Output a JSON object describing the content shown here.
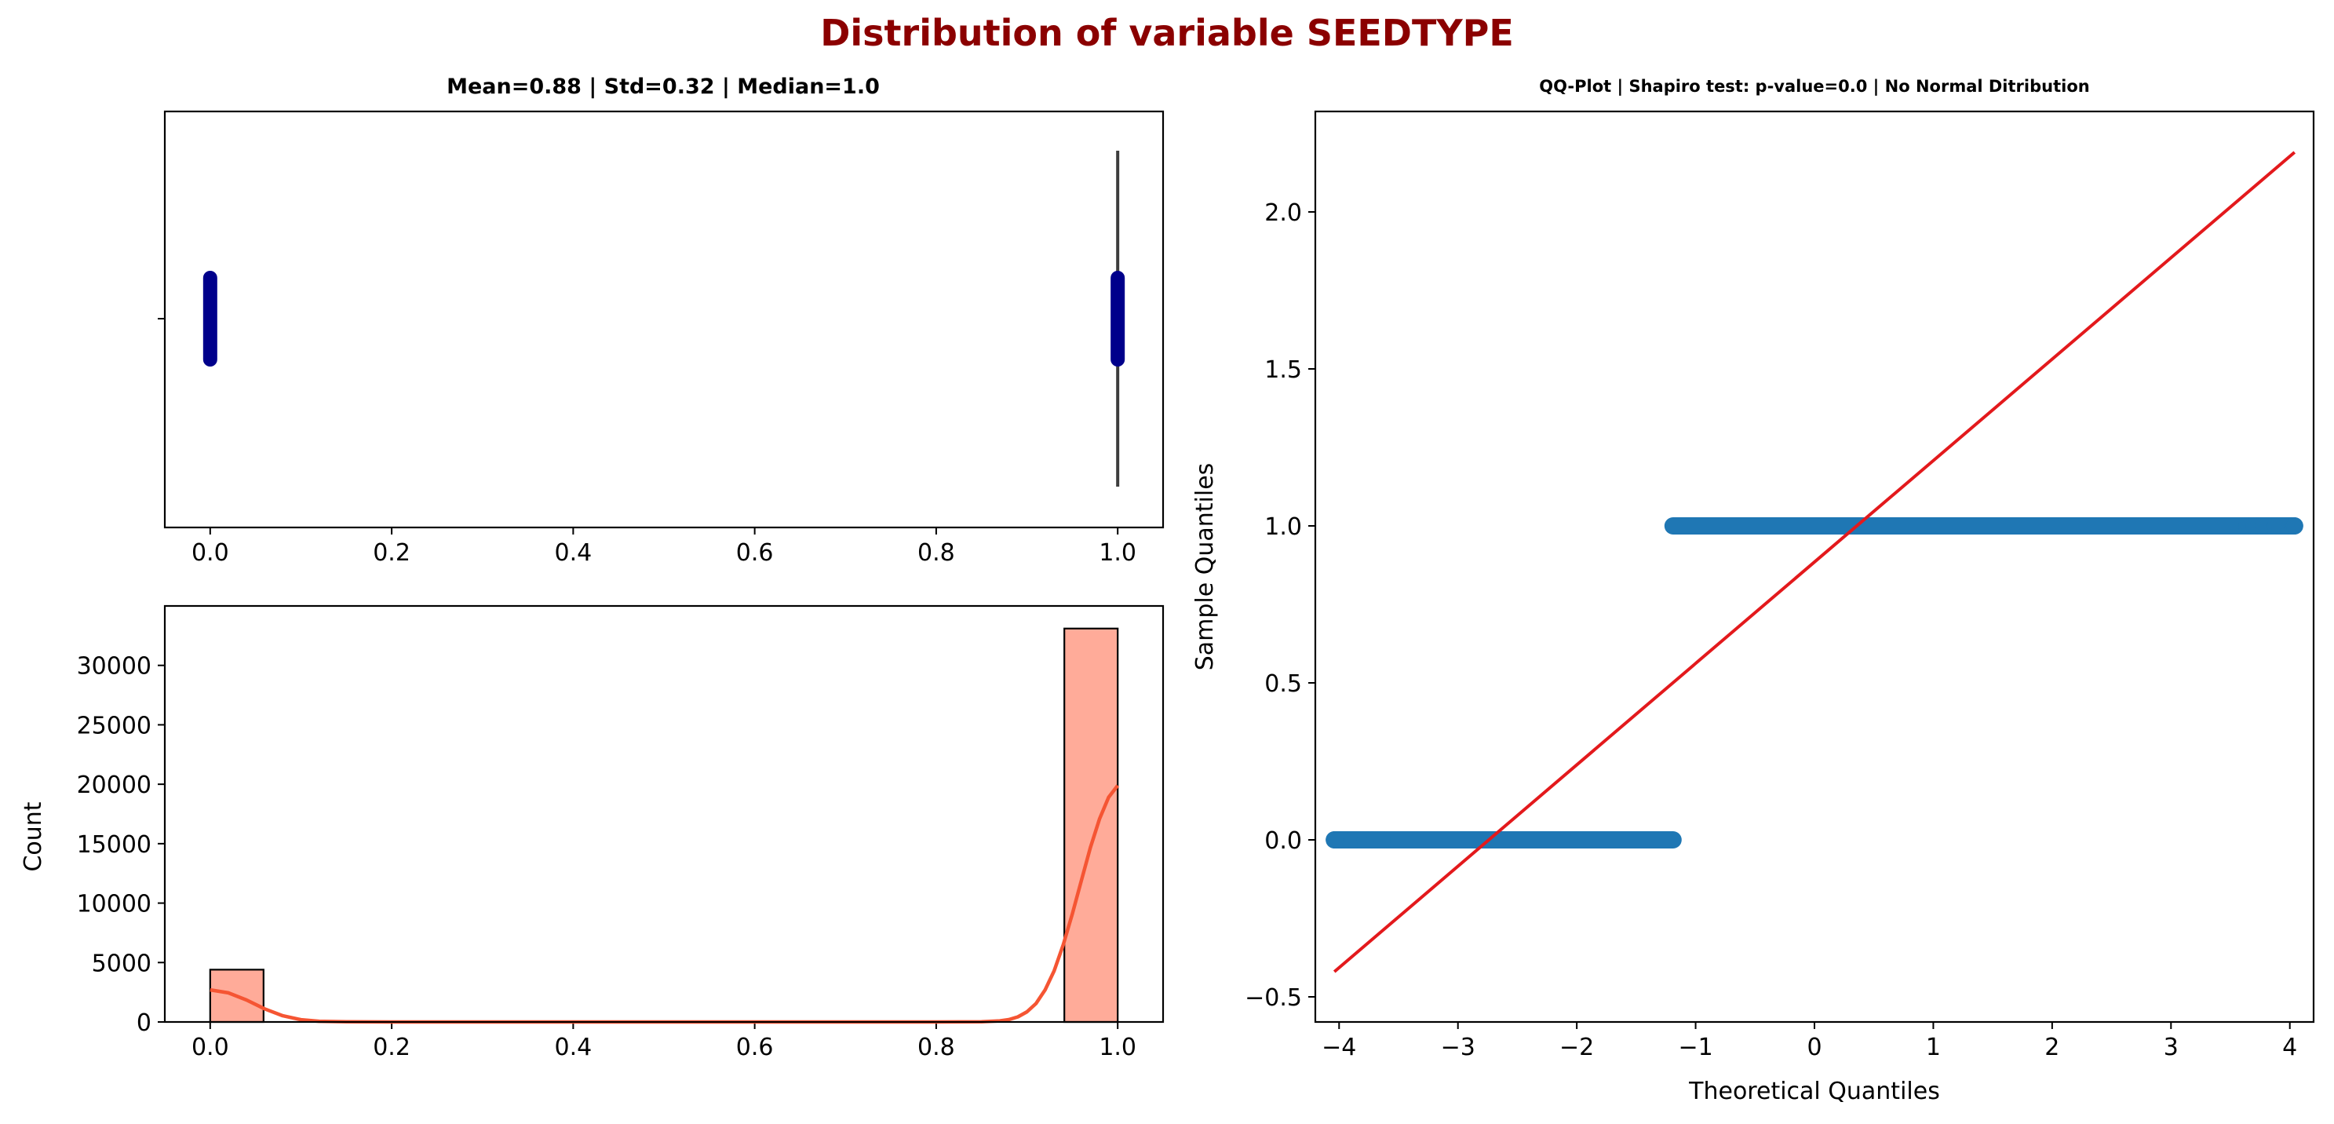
{
  "suptitle": "Distribution of variable SEEDTYPE",
  "colors": {
    "title": "#8b0000",
    "box_points": "#00008b",
    "hist_fill": "#ffab99",
    "kde": "#f55533",
    "qq_points": "#1f77b4",
    "qq_line": "#e3191c",
    "axis": "#000000"
  },
  "chart_data": [
    {
      "id": "boxplot",
      "type": "box-strip",
      "title": "Mean=0.88 | Std=0.32 | Median=1.0",
      "xlim": [
        -0.05,
        1.05
      ],
      "xticks": [
        "0.0",
        "0.2",
        "0.4",
        "0.6",
        "0.8",
        "1.0"
      ],
      "xtick_values": [
        0.0,
        0.2,
        0.4,
        0.6,
        0.8,
        1.0
      ],
      "ytick_labels": [
        ""
      ],
      "strip_values": [
        0.0,
        1.0
      ],
      "box": {
        "q1": 1.0,
        "median": 1.0,
        "q3": 1.0,
        "whisker_low": 1.0,
        "whisker_high": 1.0
      }
    },
    {
      "id": "histogram",
      "type": "bar",
      "title": "",
      "xlabel": "",
      "ylabel": "Count",
      "xlim": [
        -0.05,
        1.05
      ],
      "ylim": [
        0,
        35000
      ],
      "xticks": [
        "0.0",
        "0.2",
        "0.4",
        "0.6",
        "0.8",
        "1.0"
      ],
      "xtick_values": [
        0.0,
        0.2,
        0.4,
        0.6,
        0.8,
        1.0
      ],
      "yticks": [
        "0",
        "5000",
        "10000",
        "15000",
        "20000",
        "25000",
        "30000"
      ],
      "ytick_values": [
        0,
        5000,
        10000,
        15000,
        20000,
        25000,
        30000
      ],
      "bins": [
        {
          "x0": 0.0,
          "x1": 0.0588,
          "count": 4400
        },
        {
          "x0": 0.9412,
          "x1": 1.0,
          "count": 33100
        }
      ],
      "kde": {
        "x": [
          0.0,
          0.02,
          0.04,
          0.06,
          0.08,
          0.1,
          0.12,
          0.15,
          0.2,
          0.5,
          0.8,
          0.85,
          0.87,
          0.88,
          0.89,
          0.9,
          0.91,
          0.92,
          0.93,
          0.94,
          0.95,
          0.96,
          0.97,
          0.98,
          0.99,
          1.0
        ],
        "y": [
          2700,
          2450,
          1850,
          1100,
          520,
          190,
          60,
          10,
          0,
          0,
          0,
          20,
          90,
          200,
          430,
          850,
          1550,
          2700,
          4300,
          6500,
          9100,
          11900,
          14700,
          17100,
          18900,
          19900
        ]
      }
    },
    {
      "id": "qqplot",
      "type": "scatter",
      "title": "QQ-Plot | Shapiro test: p-value=0.0 | No Normal Ditribution",
      "xlabel": "Theoretical Quantiles",
      "ylabel": "Sample Quantiles",
      "xlim": [
        -4.2,
        4.2
      ],
      "ylim": [
        -0.58,
        2.32
      ],
      "xticks": [
        "−4",
        "−3",
        "−2",
        "−1",
        "0",
        "1",
        "2",
        "3",
        "4"
      ],
      "xtick_values": [
        -4,
        -3,
        -2,
        -1,
        0,
        1,
        2,
        3,
        4
      ],
      "yticks": [
        "−0.5",
        "0.0",
        "0.5",
        "1.0",
        "1.5",
        "2.0"
      ],
      "ytick_values": [
        -0.5,
        0.0,
        0.5,
        1.0,
        1.5,
        2.0
      ],
      "groups": [
        {
          "y": 0.0,
          "x_from": -4.04,
          "x_to": -1.19,
          "sparse_x": [
            -4.04,
            -3.88,
            -3.78,
            -3.7,
            -3.64
          ]
        },
        {
          "y": 1.0,
          "x_from": -1.19,
          "x_to": 4.04,
          "sparse_x": [
            3.64,
            3.7,
            3.78,
            3.88,
            4.04
          ]
        }
      ],
      "reference_line": {
        "x": [
          -4.04,
          4.04
        ],
        "y": [
          -0.42,
          2.19
        ]
      }
    }
  ]
}
